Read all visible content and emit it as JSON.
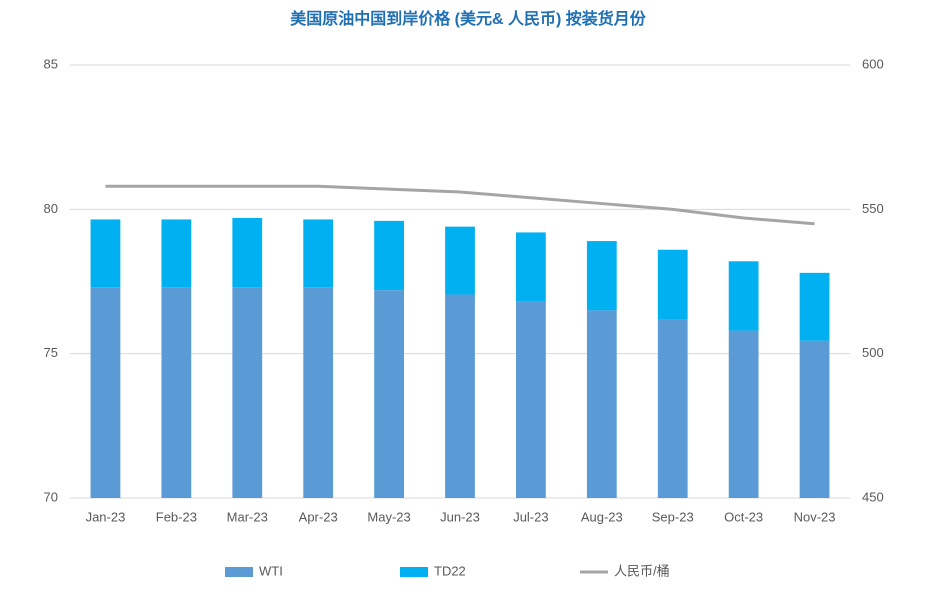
{
  "chart_data": {
    "type": "bar",
    "title": "美国原油中国到岸价格 (美元& 人民币) 按装货月份",
    "categories": [
      "Jan-23",
      "Feb-23",
      "Mar-23",
      "Apr-23",
      "May-23",
      "Jun-23",
      "Jul-23",
      "Aug-23",
      "Sep-23",
      "Oct-23",
      "Nov-23"
    ],
    "series": [
      {
        "name": "WTI",
        "color": "#5b9bd5",
        "values": [
          77.3,
          77.3,
          77.3,
          77.3,
          77.2,
          77.05,
          76.8,
          76.5,
          76.2,
          75.8,
          75.45
        ]
      },
      {
        "name": "TD22",
        "color": "#00b0f0",
        "values": [
          2.35,
          2.35,
          2.4,
          2.35,
          2.4,
          2.35,
          2.4,
          2.4,
          2.4,
          2.4,
          2.35
        ]
      },
      {
        "name": "人民币/桶",
        "color": "#a5a5a5",
        "type": "line",
        "axis": "y2",
        "values": [
          558,
          558,
          558,
          558,
          557,
          556,
          554,
          552,
          550,
          547,
          545
        ]
      }
    ],
    "ylim": [
      70,
      85
    ],
    "yticks": [
      70,
      75,
      80,
      85
    ],
    "y2lim": [
      450,
      600
    ],
    "y2ticks": [
      450,
      500,
      550,
      600
    ],
    "stacked": true,
    "grid": true,
    "legend": "bottom"
  }
}
